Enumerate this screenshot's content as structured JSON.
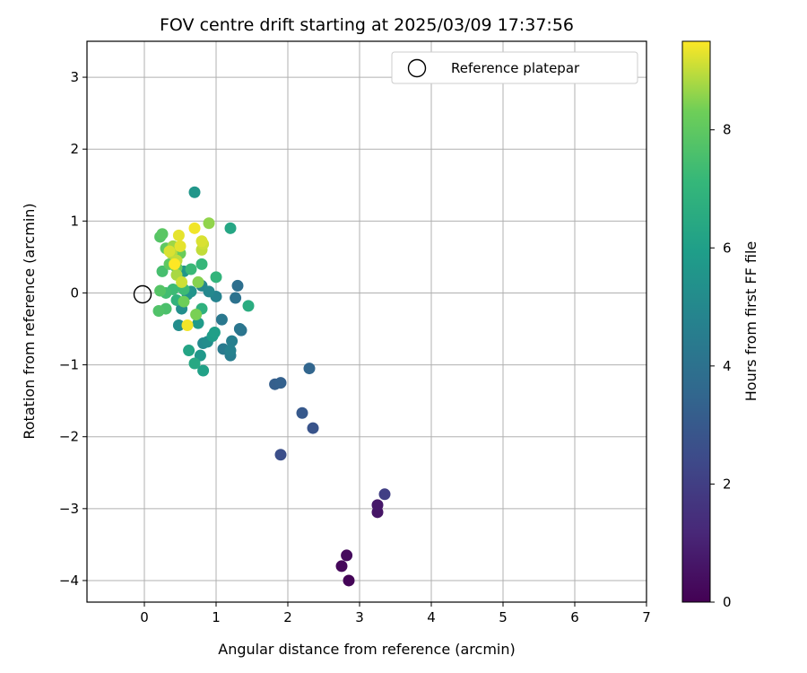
{
  "chart_data": {
    "type": "scatter",
    "title": "FOV centre drift starting at 2025/03/09 17:37:56",
    "xlabel": "Angular distance from reference (arcmin)",
    "ylabel": "Rotation from reference (arcmin)",
    "xlim": [
      -0.8,
      7.0
    ],
    "ylim": [
      -4.3,
      3.5
    ],
    "xticks": [
      "0",
      "1",
      "2",
      "3",
      "4",
      "5",
      "6",
      "7"
    ],
    "yticks": [
      "3",
      "2",
      "1",
      "0",
      "−1",
      "−2",
      "−3",
      "−4"
    ],
    "grid": true,
    "legend": {
      "position": "top-right",
      "label": "Reference platepar"
    },
    "reference_point": {
      "x": 0,
      "y": 0
    },
    "colorbar": {
      "label": "Hours from first FF file",
      "ticks": [
        "0",
        "2",
        "4",
        "6",
        "8"
      ],
      "range": [
        0,
        9.5
      ],
      "colormap": "viridis"
    },
    "points": [
      {
        "x": 2.85,
        "y": -4.0,
        "h": 0.1
      },
      {
        "x": 2.75,
        "y": -3.8,
        "h": 0.2
      },
      {
        "x": 2.82,
        "y": -3.65,
        "h": 0.3
      },
      {
        "x": 3.25,
        "y": -3.05,
        "h": 0.6
      },
      {
        "x": 3.25,
        "y": -2.95,
        "h": 0.7
      },
      {
        "x": 3.35,
        "y": -2.8,
        "h": 2.0
      },
      {
        "x": 1.9,
        "y": -2.25,
        "h": 2.6
      },
      {
        "x": 2.35,
        "y": -1.88,
        "h": 2.8
      },
      {
        "x": 2.2,
        "y": -1.67,
        "h": 3.0
      },
      {
        "x": 1.82,
        "y": -1.27,
        "h": 3.2
      },
      {
        "x": 1.9,
        "y": -1.25,
        "h": 3.3
      },
      {
        "x": 2.3,
        "y": -1.05,
        "h": 3.5
      },
      {
        "x": 1.3,
        "y": 0.1,
        "h": 3.9
      },
      {
        "x": 1.27,
        "y": -0.07,
        "h": 4.0
      },
      {
        "x": 1.35,
        "y": -0.52,
        "h": 4.1
      },
      {
        "x": 1.33,
        "y": -0.5,
        "h": 4.2
      },
      {
        "x": 1.08,
        "y": -0.37,
        "h": 4.3
      },
      {
        "x": 1.1,
        "y": -0.78,
        "h": 4.4
      },
      {
        "x": 1.2,
        "y": -0.87,
        "h": 4.5
      },
      {
        "x": 1.22,
        "y": -0.67,
        "h": 4.6
      },
      {
        "x": 1.2,
        "y": -0.8,
        "h": 4.7
      },
      {
        "x": 1.0,
        "y": -0.05,
        "h": 4.8
      },
      {
        "x": 0.8,
        "y": 0.1,
        "h": 4.9
      },
      {
        "x": 0.9,
        "y": 0.02,
        "h": 5.0
      },
      {
        "x": 0.82,
        "y": -0.7,
        "h": 5.1
      },
      {
        "x": 0.88,
        "y": -0.68,
        "h": 5.2
      },
      {
        "x": 0.48,
        "y": -0.45,
        "h": 5.2
      },
      {
        "x": 0.52,
        "y": -0.22,
        "h": 5.3
      },
      {
        "x": 0.6,
        "y": -0.02,
        "h": 5.4
      },
      {
        "x": 0.65,
        "y": 0.02,
        "h": 5.5
      },
      {
        "x": 0.7,
        "y": 1.4,
        "h": 5.6
      },
      {
        "x": 0.55,
        "y": 0.3,
        "h": 5.6
      },
      {
        "x": 0.78,
        "y": -0.87,
        "h": 5.7
      },
      {
        "x": 0.75,
        "y": -0.42,
        "h": 5.8
      },
      {
        "x": 0.95,
        "y": -0.6,
        "h": 5.9
      },
      {
        "x": 0.98,
        "y": -0.55,
        "h": 6.0
      },
      {
        "x": 0.82,
        "y": -1.08,
        "h": 6.1
      },
      {
        "x": 0.62,
        "y": -0.8,
        "h": 6.2
      },
      {
        "x": 1.2,
        "y": 0.9,
        "h": 6.3
      },
      {
        "x": 0.7,
        "y": -0.98,
        "h": 6.4
      },
      {
        "x": 1.45,
        "y": -0.18,
        "h": 6.6
      },
      {
        "x": 0.8,
        "y": -0.22,
        "h": 6.8
      },
      {
        "x": 0.45,
        "y": -0.1,
        "h": 6.9
      },
      {
        "x": 1.0,
        "y": 0.22,
        "h": 7.0
      },
      {
        "x": 0.8,
        "y": 0.4,
        "h": 7.1
      },
      {
        "x": 0.65,
        "y": 0.33,
        "h": 7.2
      },
      {
        "x": 0.4,
        "y": 0.05,
        "h": 7.3
      },
      {
        "x": 0.55,
        "y": 0.05,
        "h": 7.3
      },
      {
        "x": 0.3,
        "y": 0.0,
        "h": 7.4
      },
      {
        "x": 0.25,
        "y": 0.3,
        "h": 7.5
      },
      {
        "x": 0.3,
        "y": -0.22,
        "h": 7.6
      },
      {
        "x": 0.2,
        "y": -0.25,
        "h": 7.7
      },
      {
        "x": 0.22,
        "y": 0.03,
        "h": 7.8
      },
      {
        "x": 0.22,
        "y": 0.78,
        "h": 7.8
      },
      {
        "x": 0.25,
        "y": 0.82,
        "h": 7.9
      },
      {
        "x": 0.3,
        "y": 0.62,
        "h": 8.0
      },
      {
        "x": 0.35,
        "y": 0.4,
        "h": 8.0
      },
      {
        "x": 0.45,
        "y": 0.35,
        "h": 8.1
      },
      {
        "x": 0.5,
        "y": 0.55,
        "h": 8.2
      },
      {
        "x": 0.55,
        "y": -0.12,
        "h": 8.3
      },
      {
        "x": 0.72,
        "y": -0.3,
        "h": 8.4
      },
      {
        "x": 0.75,
        "y": 0.15,
        "h": 8.5
      },
      {
        "x": 0.9,
        "y": 0.97,
        "h": 8.6
      },
      {
        "x": 0.4,
        "y": 0.65,
        "h": 8.7
      },
      {
        "x": 0.45,
        "y": 0.25,
        "h": 8.8
      },
      {
        "x": 0.38,
        "y": 0.55,
        "h": 8.9
      },
      {
        "x": 0.45,
        "y": 0.45,
        "h": 9.0
      },
      {
        "x": 0.8,
        "y": 0.6,
        "h": 9.0
      },
      {
        "x": 0.82,
        "y": 0.68,
        "h": 9.1
      },
      {
        "x": 0.52,
        "y": 0.15,
        "h": 9.1
      },
      {
        "x": 0.8,
        "y": 0.72,
        "h": 9.2
      },
      {
        "x": 0.35,
        "y": 0.58,
        "h": 9.2
      },
      {
        "x": 0.5,
        "y": 0.65,
        "h": 9.3
      },
      {
        "x": 0.48,
        "y": 0.8,
        "h": 9.3
      },
      {
        "x": 0.7,
        "y": 0.9,
        "h": 9.4
      },
      {
        "x": 0.6,
        "y": -0.45,
        "h": 9.4
      },
      {
        "x": 0.42,
        "y": 0.4,
        "h": 9.5
      }
    ]
  }
}
